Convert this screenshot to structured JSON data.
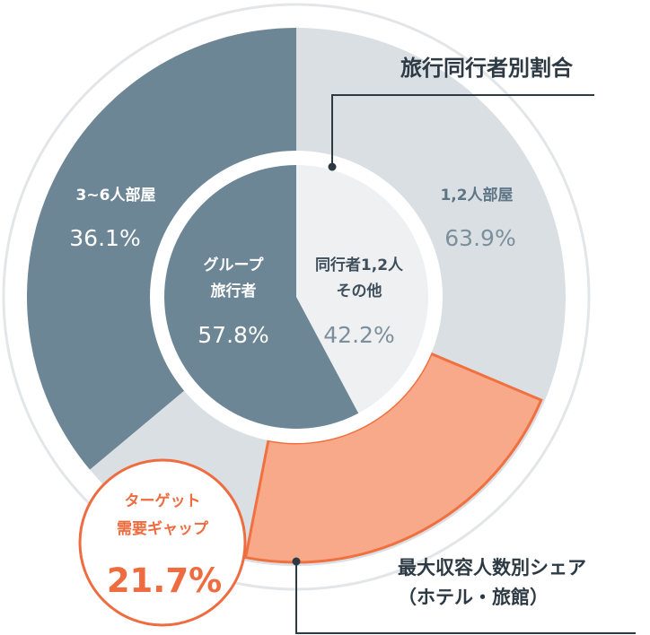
{
  "chart_data": [
    {
      "type": "pie",
      "title": "旅行同行者別割合",
      "ring": "outer",
      "slices": [
        {
          "label": "1,2人部屋",
          "value": 63.9,
          "value_label": "63.9%",
          "color": "#dadfe3"
        },
        {
          "label": "3~6人部屋",
          "value": 36.1,
          "value_label": "36.1%",
          "color": "#6c8696"
        }
      ]
    },
    {
      "type": "pie",
      "ring": "inner",
      "slices": [
        {
          "label_lines": [
            "同行者1,2人",
            "その他"
          ],
          "value": 42.2,
          "value_label": "42.2%",
          "color": "#eef0f2"
        },
        {
          "label_lines": [
            "グループ",
            "旅行者"
          ],
          "value": 57.8,
          "value_label": "57.8%",
          "color": "#6c8696"
        }
      ]
    }
  ],
  "highlight": {
    "name": "最大収容人数別シェア",
    "name_line2": "（ホテル・旅館）",
    "fill": "#f8a98a",
    "stroke": "#f0703f"
  },
  "callout": {
    "line1": "ターゲット",
    "line2": "需要ギャップ",
    "value": "21.7%",
    "color": "#ee6c3f"
  },
  "colors": {
    "outer_ring_line": "#e3e6e9",
    "leader": "#2d3a44",
    "title_text": "#2d3a44"
  }
}
